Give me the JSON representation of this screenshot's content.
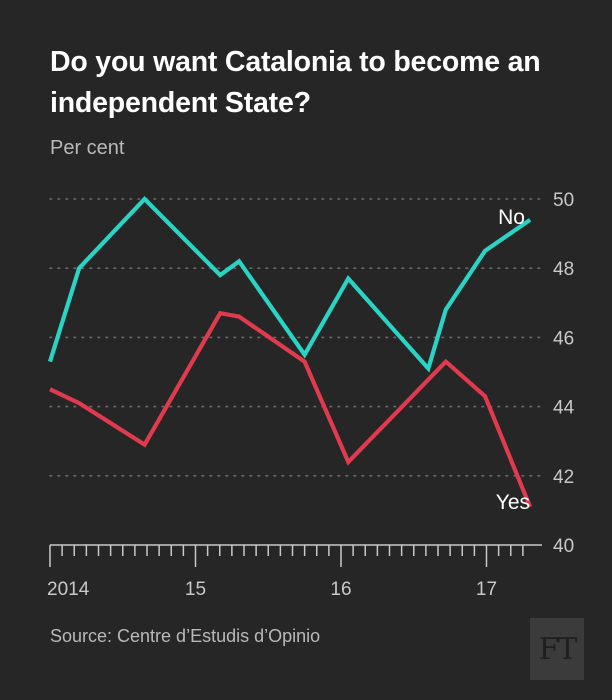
{
  "header": {
    "title": "Do you want Catalonia to become an independent State?",
    "subtitle": "Per cent"
  },
  "footer": {
    "source": "Source: Centre d’Estudis d’Opinio",
    "logo_text": "FT"
  },
  "colors": {
    "background": "#262626",
    "no_series": "#2ad4c4",
    "yes_series": "#e03a4e",
    "grid": "#6a6a6a",
    "axis": "#c8c8c8"
  },
  "chart_data": {
    "type": "line",
    "title": "Do you want Catalonia to become an independent State?",
    "subtitle": "Per cent",
    "ylim": [
      40,
      50
    ],
    "yticks": [
      40,
      42,
      44,
      46,
      48,
      50
    ],
    "xlim": [
      2014.0,
      2017.3
    ],
    "xticks": [
      {
        "value": 2014.0,
        "label": "2014"
      },
      {
        "value": 2015.0,
        "label": "15"
      },
      {
        "value": 2016.0,
        "label": "16"
      },
      {
        "value": 2017.0,
        "label": "17"
      }
    ],
    "grid": "horizontal dotted",
    "series": [
      {
        "name": "No",
        "color": "#2ad4c4",
        "points": [
          [
            2014.0,
            45.3
          ],
          [
            2014.2,
            48.0
          ],
          [
            2014.65,
            50.0
          ],
          [
            2015.17,
            47.8
          ],
          [
            2015.3,
            48.2
          ],
          [
            2015.75,
            45.5
          ],
          [
            2016.05,
            47.7
          ],
          [
            2016.6,
            45.1
          ],
          [
            2016.72,
            46.8
          ],
          [
            2016.99,
            48.5
          ],
          [
            2017.3,
            49.4
          ]
        ]
      },
      {
        "name": "Yes",
        "color": "#e03a4e",
        "points": [
          [
            2014.0,
            44.5
          ],
          [
            2014.2,
            44.1
          ],
          [
            2014.65,
            42.9
          ],
          [
            2015.17,
            46.7
          ],
          [
            2015.3,
            46.6
          ],
          [
            2015.75,
            45.3
          ],
          [
            2016.05,
            42.4
          ],
          [
            2016.72,
            45.3
          ],
          [
            2016.99,
            44.3
          ],
          [
            2017.3,
            41.1
          ]
        ]
      }
    ]
  }
}
